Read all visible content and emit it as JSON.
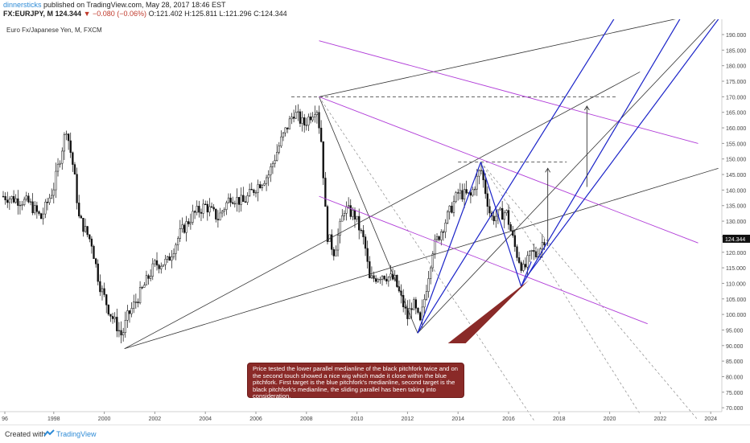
{
  "header": {
    "author": "dinnersticks",
    "published": "published on TradingView.com, May 28, 2017 18:46 EST"
  },
  "ohlc": {
    "symbol": "FX:EURJPY, M",
    "last": "124.344",
    "change": "▼ −0.080 (−0.06%)",
    "o": "O:121.402",
    "h": "H:125.811",
    "l": "L:121.296",
    "c": "C:124.344"
  },
  "subtitle": "Euro Fx/Japanese Yen, M, FXCM",
  "annotation": "Price tested the lower parallel medianline of the black pitchfork twice and on the second touch showed a nice wig which made it close within the blue pitchfork. First target is the blue pitchfork's medianline, second target is the black pitchfork's medianline, the sliding parallel has been taking into consideration.",
  "footer": {
    "created": "Created with",
    "brand": "TradingView"
  },
  "colors": {
    "candle": "#111111",
    "black_pitchfork": "#333333",
    "blue_pitchfork": "#1a23c8",
    "magenta_lines": "#b03bd8",
    "annotation_bg": "#8a2a28",
    "price_tag": "#111111"
  },
  "chart_data": {
    "type": "candlestick",
    "title": "Euro Fx/Japanese Yen, M, FXCM",
    "x_ticks": [
      "96",
      "1998",
      "2000",
      "2002",
      "2004",
      "2006",
      "2008",
      "2010",
      "2012",
      "2014",
      "2016",
      "2018",
      "2020",
      "2022",
      "2024"
    ],
    "y_ticks": [
      "190.000",
      "185.000",
      "180.000",
      "175.000",
      "170.000",
      "165.000",
      "160.000",
      "155.000",
      "150.000",
      "145.000",
      "140.000",
      "135.000",
      "130.000",
      "125.000",
      "120.000",
      "115.000",
      "110.000",
      "105.000",
      "100.000",
      "95.000",
      "90.000",
      "85.000",
      "80.000",
      "75.000",
      "70.000"
    ],
    "ylim": [
      67,
      193
    ],
    "xlim": [
      1996.0,
      2024.5
    ],
    "last_price_label": "124.344",
    "monthly_closes_approx": [
      [
        1996.0,
        138
      ],
      [
        1996.5,
        137
      ],
      [
        1997.0,
        136
      ],
      [
        1997.5,
        131
      ],
      [
        1998.0,
        141
      ],
      [
        1998.5,
        160
      ],
      [
        1998.8,
        146
      ],
      [
        1999.0,
        131
      ],
      [
        1999.5,
        123
      ],
      [
        1999.8,
        110
      ],
      [
        2000.2,
        101
      ],
      [
        2000.7,
        93
      ],
      [
        2000.9,
        99
      ],
      [
        2001.5,
        108
      ],
      [
        2002.0,
        116
      ],
      [
        2002.5,
        117
      ],
      [
        2003.0,
        126
      ],
      [
        2003.5,
        132
      ],
      [
        2004.0,
        135
      ],
      [
        2004.5,
        131
      ],
      [
        2005.0,
        138
      ],
      [
        2005.5,
        136
      ],
      [
        2006.0,
        141
      ],
      [
        2006.5,
        145
      ],
      [
        2007.0,
        156
      ],
      [
        2007.5,
        165
      ],
      [
        2007.9,
        161
      ],
      [
        2008.4,
        167
      ],
      [
        2008.6,
        155
      ],
      [
        2008.8,
        126
      ],
      [
        2009.1,
        120
      ],
      [
        2009.5,
        134
      ],
      [
        2009.9,
        132
      ],
      [
        2010.3,
        123
      ],
      [
        2010.5,
        111
      ],
      [
        2011.0,
        113
      ],
      [
        2011.5,
        111
      ],
      [
        2012.0,
        99
      ],
      [
        2012.2,
        104
      ],
      [
        2012.5,
        97
      ],
      [
        2013.0,
        121
      ],
      [
        2013.5,
        130
      ],
      [
        2014.0,
        139
      ],
      [
        2014.5,
        138
      ],
      [
        2014.9,
        147
      ],
      [
        2015.3,
        131
      ],
      [
        2015.9,
        133
      ],
      [
        2016.3,
        120
      ],
      [
        2016.6,
        114
      ],
      [
        2016.9,
        120
      ],
      [
        2017.1,
        119
      ],
      [
        2017.4,
        124.3
      ]
    ]
  }
}
